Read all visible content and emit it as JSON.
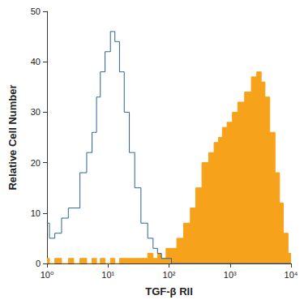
{
  "chart_data": {
    "type": "line",
    "log": "x",
    "xlabel": "TGF-β RII",
    "ylabel": "Relative Cell Number",
    "x": [
      1,
      1.2,
      1.5,
      2,
      2.5,
      3,
      4,
      5,
      6,
      7,
      8,
      10,
      12,
      14,
      17,
      20,
      25,
      30,
      40,
      50,
      60,
      70,
      80,
      100,
      120,
      150,
      200,
      250,
      300,
      400,
      500,
      600,
      700,
      800,
      1000,
      1200,
      1500,
      2000,
      2500,
      3000,
      3500,
      4000,
      5000,
      6000,
      7000,
      8000,
      10000
    ],
    "series": [
      {
        "type": "area",
        "color": "#f7a21b",
        "values": [
          1,
          0,
          1,
          0,
          1,
          0,
          1,
          0,
          1,
          0,
          1,
          0,
          1,
          0,
          1,
          1,
          1,
          1,
          1,
          2,
          1,
          2,
          1,
          3,
          3,
          5,
          8,
          11,
          15,
          20,
          22,
          24,
          25,
          27,
          28,
          30,
          32,
          34,
          37,
          38,
          36,
          33,
          26,
          18,
          12,
          6,
          2
        ]
      },
      {
        "type": "line",
        "color": "#2a6496",
        "values": [
          8,
          5,
          6,
          9,
          11,
          11,
          18,
          22,
          26,
          33,
          38,
          42,
          46,
          44,
          38,
          30,
          22,
          15,
          8,
          5,
          3,
          2,
          1,
          1,
          0,
          0,
          0,
          0,
          0,
          0,
          0,
          0,
          0,
          0,
          0,
          0,
          0,
          0,
          0,
          0,
          0,
          0,
          0,
          0,
          0,
          0,
          0
        ]
      }
    ],
    "xlim": [
      1,
      10000
    ],
    "xticks": [
      {
        "value": 1,
        "label": "10⁰"
      },
      {
        "value": 10,
        "label": "10¹"
      },
      {
        "value": 100,
        "label": "10²"
      },
      {
        "value": 1000,
        "label": "10³"
      },
      {
        "value": 10000,
        "label": "10⁴"
      }
    ],
    "ylim": [
      0,
      50
    ],
    "yticks": [
      0,
      10,
      20,
      30,
      40,
      50
    ],
    "grid": false
  }
}
